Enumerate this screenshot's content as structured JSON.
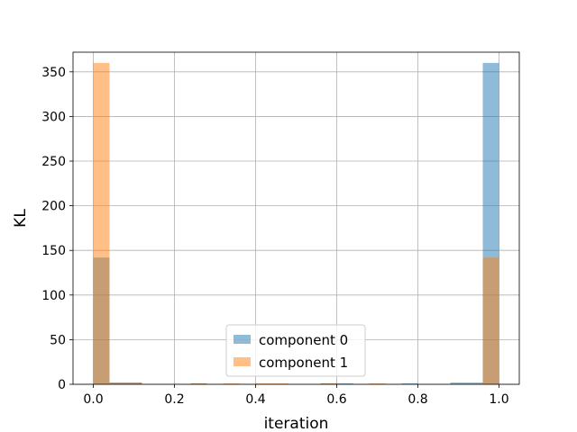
{
  "chart_data": {
    "type": "bar",
    "subtype": "overlaid-histogram",
    "title": "",
    "xlabel": "iteration",
    "ylabel": "KL",
    "xlim": [
      -0.05,
      1.05
    ],
    "ylim": [
      0,
      372
    ],
    "xticks": [
      "0.0",
      "0.2",
      "0.4",
      "0.6",
      "0.8",
      "1.0"
    ],
    "yticks": [
      "0",
      "50",
      "100",
      "150",
      "200",
      "250",
      "300",
      "350"
    ],
    "grid": true,
    "legend_position": "bottom-center",
    "bin_edges": [
      0.0,
      0.04,
      0.08,
      0.12,
      0.16,
      0.2,
      0.24,
      0.28,
      0.32,
      0.36,
      0.4,
      0.44,
      0.48,
      0.52,
      0.56,
      0.6,
      0.64,
      0.68,
      0.72,
      0.76,
      0.8,
      0.84,
      0.88,
      0.92,
      0.96,
      1.0
    ],
    "series": [
      {
        "name": "component 0",
        "color": "#1f77b4",
        "alpha": 0.5,
        "values": [
          142,
          2,
          2,
          0,
          0,
          0,
          1,
          0,
          0,
          0,
          0,
          0,
          0,
          0,
          1,
          1,
          0,
          0,
          0,
          1,
          0,
          0,
          2,
          2,
          360
        ]
      },
      {
        "name": "component 1",
        "color": "#ff7f0e",
        "alpha": 0.5,
        "values": [
          360,
          2,
          2,
          0,
          0,
          0,
          1,
          0,
          1,
          0,
          1,
          1,
          0,
          0,
          1,
          0,
          0,
          1,
          0,
          0,
          0,
          0,
          0,
          0,
          142
        ]
      }
    ]
  }
}
